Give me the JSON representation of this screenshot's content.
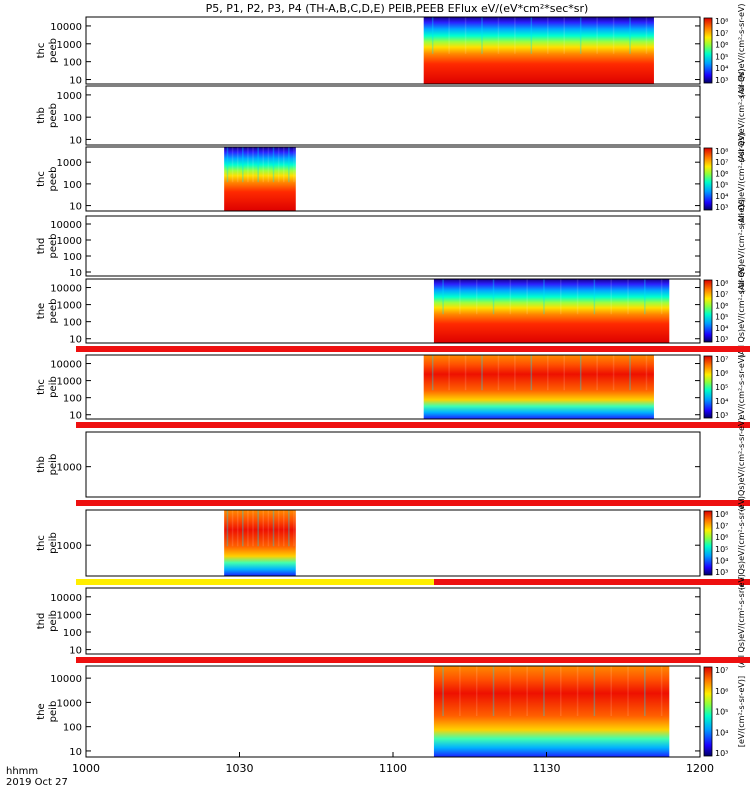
{
  "chart_data": {
    "type": "heatmap",
    "title": "P5, P1, P2, P3, P4 (TH-A,B,C,D,E) PEIB,PEEB EFlux eV/(eV*cm²*sec*sr)",
    "x_axis": {
      "range": [
        "10:00",
        "12:00"
      ],
      "ticks": [
        "1000",
        "1030",
        "1100",
        "1130",
        "1200"
      ],
      "label_line1": "hhmm",
      "label_line2": "2019 Oct 27"
    },
    "panels": [
      {
        "id": "thc-peeb-0",
        "label1": "thc",
        "label2": "peeb",
        "kind": "electron",
        "yticks": [
          "10",
          "100",
          "1000",
          "10000"
        ],
        "data_start_min": 66,
        "data_end_min": 111,
        "colorbar": true,
        "cb_ticks": [
          "10³",
          "10⁴",
          "10⁵",
          "10⁶",
          "10⁷",
          "10⁸"
        ],
        "cb_label": "(All Qs)eV/(cm²-s-sr-eV)"
      },
      {
        "id": "thb-peeb",
        "label1": "thb",
        "label2": "peeb",
        "kind": "empty",
        "yticks": [
          "10",
          "100",
          "1000"
        ],
        "colorbar": false,
        "cb_label": "(All Qs)eV/(cm²-s-sr-eV)"
      },
      {
        "id": "thc-peeb",
        "label1": "thc",
        "label2": "peeb",
        "kind": "electron",
        "yticks": [
          "10",
          "100",
          "1000"
        ],
        "data_start_min": 27,
        "data_end_min": 41,
        "colorbar": true,
        "cb_ticks": [
          "10³",
          "10⁴",
          "10⁵",
          "10⁶",
          "10⁷",
          "10⁸"
        ],
        "cb_label": "(All Qs)eV/(cm²-s-sr-eV)"
      },
      {
        "id": "thd-peeb",
        "label1": "thd",
        "label2": "peeb",
        "kind": "empty",
        "yticks": [
          "10",
          "100",
          "1000",
          "10000"
        ],
        "colorbar": false,
        "cb_label": "(All Qs)eV/(cm²-s-sr-eV)"
      },
      {
        "id": "the-peeb",
        "label1": "the",
        "label2": "peeb",
        "kind": "electron",
        "yticks": [
          "10",
          "100",
          "1000",
          "10000"
        ],
        "data_start_min": 68,
        "data_end_min": 114,
        "colorbar": true,
        "cb_ticks": [
          "10³",
          "10⁴",
          "10⁵",
          "10⁶",
          "10⁷",
          "10⁸"
        ],
        "cb_label": "(All Qs)eV/(cm²-s-sr-eV)",
        "bar_below": [
          "red"
        ]
      },
      {
        "id": "thc-peib",
        "label1": "thc",
        "label2": "peib",
        "kind": "ion",
        "yticks": [
          "10",
          "100",
          "1000",
          "10000"
        ],
        "data_start_min": 66,
        "data_end_min": 111,
        "colorbar": true,
        "cb_ticks": [
          "10³",
          "10⁴",
          "10⁵",
          "10⁶",
          "10⁷"
        ],
        "cb_label": "eV/(cm²-s-sr-eV)",
        "bar_below": [
          "red"
        ]
      },
      {
        "id": "thb-peib",
        "label1": "thb",
        "label2": "peib",
        "kind": "empty",
        "yticks": [
          "1000"
        ],
        "colorbar": false,
        "cb_label": "(All Qs)eV/(cm²-s-sr-eV)",
        "bar_below": [
          "red"
        ]
      },
      {
        "id": "thc-peib-2",
        "label1": "thc",
        "label2": "peib",
        "kind": "ion",
        "yticks": [
          "1000"
        ],
        "data_start_min": 27,
        "data_end_min": 41,
        "colorbar": true,
        "cb_ticks": [
          "10³",
          "10⁴",
          "10⁵",
          "10⁶",
          "10⁷",
          "10⁸"
        ],
        "cb_label": "(All Qs)eV/(cm²-s-sr-eV)",
        "bar_below": [
          "yellow",
          "red"
        ]
      },
      {
        "id": "thd-peib",
        "label1": "thd",
        "label2": "peib",
        "kind": "empty",
        "yticks": [
          "10",
          "100",
          "1000",
          "10000"
        ],
        "colorbar": false,
        "cb_label": "(All Qs)eV/(cm²-s-sr-eV)",
        "bar_below": [
          "red"
        ]
      },
      {
        "id": "the-peib",
        "label1": "the",
        "label2": "peib",
        "kind": "ion",
        "yticks": [
          "10",
          "100",
          "1000",
          "10000"
        ],
        "data_start_min": 68,
        "data_end_min": 114,
        "colorbar": true,
        "cb_ticks": [
          "10³",
          "10⁴",
          "10⁵",
          "10⁶",
          "10⁷"
        ],
        "cb_label": "[eV/(cm²-s-sr-eV)]"
      }
    ]
  }
}
